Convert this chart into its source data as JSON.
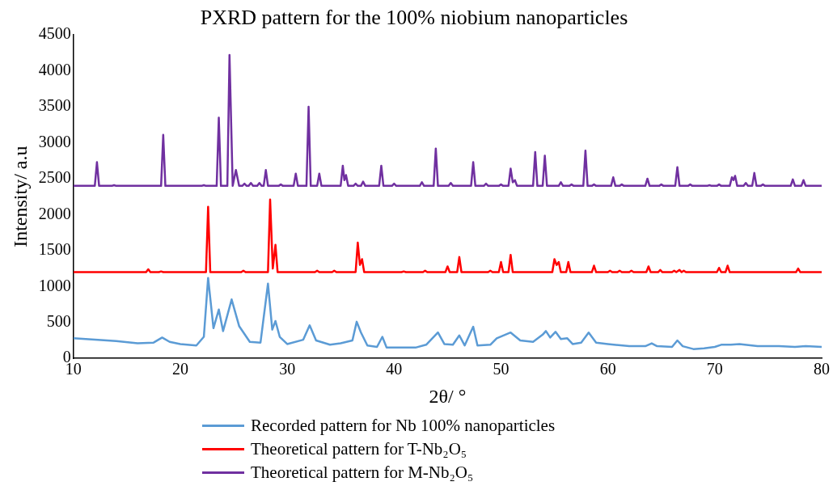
{
  "chart_data": {
    "type": "line",
    "title": "PXRD pattern for the 100% niobium nanoparticles",
    "xlabel": "2θ/ °",
    "ylabel": "Intensity/ a.u",
    "xlim": [
      10,
      80
    ],
    "xticks": [
      10,
      20,
      30,
      40,
      50,
      60,
      70,
      80
    ],
    "ylim": [
      0,
      4500
    ],
    "yticks": [
      0,
      500,
      1000,
      1500,
      2000,
      2500,
      3000,
      3500,
      4000,
      4500
    ],
    "grid": false,
    "legend": "bottom",
    "marker": "none",
    "line_style": "solid",
    "series": [
      {
        "name": "Recorded pattern for Nb 100% nanoparticles",
        "color": "#5b9bd5",
        "x": [
          10,
          12,
          14,
          16,
          17.5,
          18.3,
          19,
          20,
          21.5,
          22.2,
          22.6,
          23.1,
          23.6,
          24.0,
          24.8,
          25.5,
          26.5,
          27.5,
          28.2,
          28.6,
          28.9,
          29.3,
          30,
          31.5,
          32.1,
          32.7,
          34,
          35,
          36.1,
          36.5,
          36.9,
          37.5,
          38.4,
          38.9,
          39.3,
          40,
          42,
          43,
          44.1,
          44.7,
          45.5,
          46.1,
          46.6,
          47.4,
          47.8,
          49.0,
          49.6,
          50.9,
          51.8,
          53.0,
          53.9,
          54.2,
          54.6,
          55.1,
          55.6,
          56.2,
          56.7,
          57.5,
          58.2,
          58.9,
          60,
          62,
          63.5,
          64.1,
          64.6,
          66,
          66.5,
          67,
          68,
          69,
          70,
          70.6,
          71.5,
          72.3,
          74,
          76,
          77.5,
          78.5,
          80
        ],
        "values": [
          280,
          260,
          240,
          210,
          220,
          290,
          230,
          200,
          180,
          300,
          1120,
          420,
          680,
          380,
          820,
          450,
          230,
          220,
          1040,
          400,
          520,
          300,
          200,
          260,
          460,
          250,
          190,
          210,
          250,
          510,
          360,
          180,
          160,
          300,
          150,
          150,
          150,
          190,
          360,
          200,
          190,
          320,
          180,
          440,
          180,
          190,
          280,
          360,
          250,
          230,
          330,
          380,
          290,
          370,
          270,
          280,
          200,
          220,
          360,
          220,
          200,
          170,
          170,
          210,
          170,
          160,
          250,
          170,
          130,
          140,
          160,
          190,
          190,
          200,
          170,
          170,
          160,
          170,
          160
        ]
      },
      {
        "name": "Theoretical pattern for T-Nb₂O₅",
        "color": "#ff0000",
        "x": [
          10,
          16.8,
          17.0,
          17.2,
          18.0,
          18.2,
          18.4,
          22.4,
          22.6,
          22.8,
          25.7,
          25.9,
          26.1,
          28.2,
          28.4,
          28.65,
          28.9,
          29.1,
          32.6,
          32.8,
          33.0,
          34.2,
          34.4,
          34.6,
          36.4,
          36.6,
          36.8,
          37.0,
          37.2,
          40.7,
          40.9,
          41.1,
          42.7,
          42.9,
          43.1,
          44.8,
          45.0,
          45.2,
          45.9,
          46.1,
          46.3,
          48.8,
          49.0,
          49.2,
          49.8,
          50.0,
          50.2,
          50.7,
          50.9,
          51.1,
          54.8,
          55.0,
          55.2,
          55.4,
          55.6,
          56.1,
          56.3,
          56.5,
          58.5,
          58.7,
          58.9,
          60.0,
          60.2,
          60.4,
          60.9,
          61.1,
          61.3,
          62.0,
          62.2,
          62.4,
          63.6,
          63.8,
          64.0,
          64.7,
          64.9,
          65.1,
          66.0,
          66.2,
          66.4,
          66.7,
          66.9,
          67.1,
          67.3,
          70.2,
          70.4,
          70.6,
          71.0,
          71.2,
          71.4,
          77.6,
          77.8,
          78.0,
          80
        ],
        "values": [
          1200,
          1200,
          1240,
          1200,
          1200,
          1210,
          1200,
          1200,
          2110,
          1200,
          1200,
          1220,
          1200,
          1200,
          2210,
          1250,
          1580,
          1200,
          1200,
          1220,
          1200,
          1200,
          1220,
          1200,
          1200,
          1610,
          1300,
          1380,
          1200,
          1200,
          1210,
          1200,
          1200,
          1220,
          1200,
          1200,
          1280,
          1200,
          1200,
          1410,
          1200,
          1200,
          1220,
          1200,
          1200,
          1340,
          1200,
          1200,
          1440,
          1200,
          1200,
          1380,
          1300,
          1340,
          1200,
          1200,
          1340,
          1200,
          1200,
          1290,
          1200,
          1200,
          1220,
          1200,
          1200,
          1220,
          1200,
          1200,
          1220,
          1200,
          1200,
          1280,
          1200,
          1200,
          1230,
          1200,
          1200,
          1220,
          1200,
          1230,
          1200,
          1220,
          1200,
          1200,
          1260,
          1200,
          1200,
          1290,
          1200,
          1200,
          1250,
          1200,
          1200
        ]
      },
      {
        "name": "Theoretical pattern for M-Nb₂O₅",
        "color": "#7030a0",
        "x": [
          10,
          12.0,
          12.2,
          12.4,
          13.6,
          13.8,
          14.0,
          18.2,
          18.4,
          18.6,
          22.0,
          22.2,
          22.4,
          23.4,
          23.6,
          23.8,
          24.4,
          24.6,
          24.9,
          25.2,
          25.5,
          25.8,
          26.0,
          26.2,
          26.4,
          26.6,
          26.8,
          27.2,
          27.4,
          27.6,
          27.8,
          28.0,
          28.2,
          29.2,
          29.4,
          29.6,
          30.6,
          30.8,
          31.0,
          31.8,
          32.0,
          32.2,
          32.8,
          33.0,
          33.2,
          35.0,
          35.2,
          35.35,
          35.5,
          35.7,
          36.2,
          36.4,
          36.6,
          36.9,
          37.1,
          37.3,
          38.6,
          38.8,
          39.0,
          39.8,
          40.0,
          40.2,
          42.4,
          42.6,
          42.8,
          43.7,
          43.9,
          44.1,
          45.1,
          45.3,
          45.5,
          47.2,
          47.4,
          47.6,
          48.4,
          48.6,
          48.8,
          49.8,
          50.0,
          50.2,
          50.7,
          50.9,
          51.1,
          51.3,
          51.5,
          53.0,
          53.2,
          53.4,
          53.9,
          54.1,
          54.3,
          55.4,
          55.6,
          55.8,
          56.4,
          56.6,
          56.8,
          57.7,
          57.9,
          58.1,
          58.5,
          58.7,
          58.9,
          60.3,
          60.5,
          60.7,
          61.1,
          61.3,
          61.5,
          63.5,
          63.7,
          63.9,
          64.8,
          65.0,
          65.2,
          66.3,
          66.5,
          66.7,
          67.5,
          67.7,
          67.9,
          69.3,
          69.5,
          69.7,
          70.2,
          70.4,
          70.6,
          71.4,
          71.6,
          71.75,
          71.9,
          72.1,
          72.7,
          72.9,
          73.1,
          73.5,
          73.7,
          73.9,
          74.3,
          74.5,
          74.7,
          77.1,
          77.3,
          77.5,
          78.1,
          78.3,
          78.5,
          80
        ],
        "values": [
          2400,
          2400,
          2730,
          2400,
          2400,
          2410,
          2400,
          2400,
          3110,
          2400,
          2400,
          2410,
          2400,
          2400,
          3350,
          2400,
          2400,
          4220,
          2400,
          2620,
          2400,
          2400,
          2430,
          2400,
          2400,
          2440,
          2400,
          2400,
          2440,
          2400,
          2400,
          2620,
          2400,
          2400,
          2420,
          2400,
          2400,
          2570,
          2400,
          2400,
          3500,
          2400,
          2400,
          2570,
          2400,
          2400,
          2680,
          2480,
          2550,
          2400,
          2400,
          2430,
          2400,
          2400,
          2460,
          2400,
          2400,
          2680,
          2400,
          2400,
          2430,
          2400,
          2400,
          2450,
          2400,
          2400,
          2920,
          2400,
          2400,
          2440,
          2400,
          2400,
          2730,
          2400,
          2400,
          2430,
          2400,
          2400,
          2420,
          2400,
          2400,
          2640,
          2450,
          2480,
          2400,
          2400,
          2870,
          2400,
          2400,
          2820,
          2400,
          2400,
          2450,
          2400,
          2400,
          2420,
          2400,
          2400,
          2890,
          2400,
          2400,
          2420,
          2400,
          2400,
          2520,
          2400,
          2400,
          2420,
          2400,
          2400,
          2500,
          2400,
          2400,
          2420,
          2400,
          2400,
          2660,
          2400,
          2400,
          2420,
          2400,
          2400,
          2410,
          2400,
          2400,
          2420,
          2400,
          2400,
          2520,
          2480,
          2540,
          2400,
          2400,
          2440,
          2400,
          2400,
          2580,
          2400,
          2400,
          2420,
          2400,
          2400,
          2490,
          2400,
          2400,
          2480,
          2400,
          2400
        ]
      }
    ]
  }
}
